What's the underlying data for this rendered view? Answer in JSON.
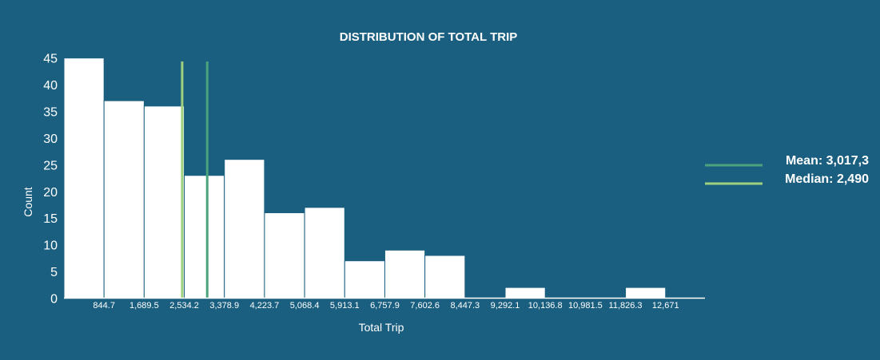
{
  "colors": {
    "background": "#1b5f80",
    "bar": "#ffffff",
    "mean_line": "#4aa37c",
    "median_line": "#9fd07e"
  },
  "chart_data": {
    "type": "bar",
    "title": "DISTRIBUTION OF TOTAL TRIP",
    "xlabel": "Total Trip",
    "ylabel": "Count",
    "ylim": [
      0,
      46
    ],
    "xlim": [
      0,
      13500
    ],
    "y_ticks": [
      0,
      5,
      10,
      15,
      20,
      25,
      30,
      35,
      40,
      45
    ],
    "x_tick_values": [
      844.7,
      1689.5,
      2534.2,
      3378.9,
      4223.7,
      5068.4,
      5913.1,
      6757.9,
      7602.6,
      8447.3,
      9292.1,
      10136.8,
      10981.5,
      11826.3,
      12671
    ],
    "x_tick_labels": [
      "844.7",
      "1,689.5",
      "2,534.2",
      "3,378.9",
      "4,223.7",
      "5,068.4",
      "5,913.1",
      "6,757.9",
      "7,602.6",
      "8,447.3",
      "9,292.1",
      "10,136.8",
      "10,981.5",
      "11,826.3",
      "12,671"
    ],
    "bins": [
      {
        "start": 0,
        "end": 844.7,
        "count": 45
      },
      {
        "start": 844.7,
        "end": 1689.5,
        "count": 37
      },
      {
        "start": 1689.5,
        "end": 2534.2,
        "count": 36
      },
      {
        "start": 2534.2,
        "end": 3378.9,
        "count": 23
      },
      {
        "start": 3378.9,
        "end": 4223.7,
        "count": 26
      },
      {
        "start": 4223.7,
        "end": 5068.4,
        "count": 16
      },
      {
        "start": 5068.4,
        "end": 5913.1,
        "count": 17
      },
      {
        "start": 5913.1,
        "end": 6757.9,
        "count": 7
      },
      {
        "start": 6757.9,
        "end": 7602.6,
        "count": 9
      },
      {
        "start": 7602.6,
        "end": 8447.3,
        "count": 8
      },
      {
        "start": 8447.3,
        "end": 9292.1,
        "count": 0
      },
      {
        "start": 9292.1,
        "end": 10136.8,
        "count": 2
      },
      {
        "start": 10136.8,
        "end": 10981.5,
        "count": 0
      },
      {
        "start": 10981.5,
        "end": 11826.3,
        "count": 0
      },
      {
        "start": 11826.3,
        "end": 12671,
        "count": 2
      }
    ],
    "reference_lines": [
      {
        "name": "Mean: 3,017,3",
        "value": 3017.3,
        "color": "#4aa37c"
      },
      {
        "name": "Median: 2,490",
        "value": 2490,
        "color": "#9fd07e"
      }
    ],
    "legend_position": "right",
    "grid": false
  }
}
